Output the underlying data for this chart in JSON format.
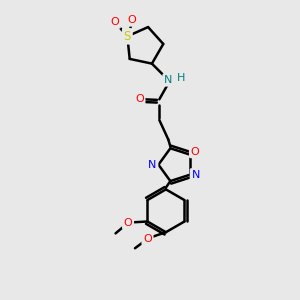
{
  "background_color": "#e8e8e8",
  "bond_color": "#000000",
  "bond_lw": 1.8,
  "figsize": [
    3.0,
    3.0
  ],
  "dpi": 100,
  "colors": {
    "S": "#cccc00",
    "O": "#ff0000",
    "N": "#0000ff",
    "NH": "#008080",
    "H": "#008080"
  }
}
